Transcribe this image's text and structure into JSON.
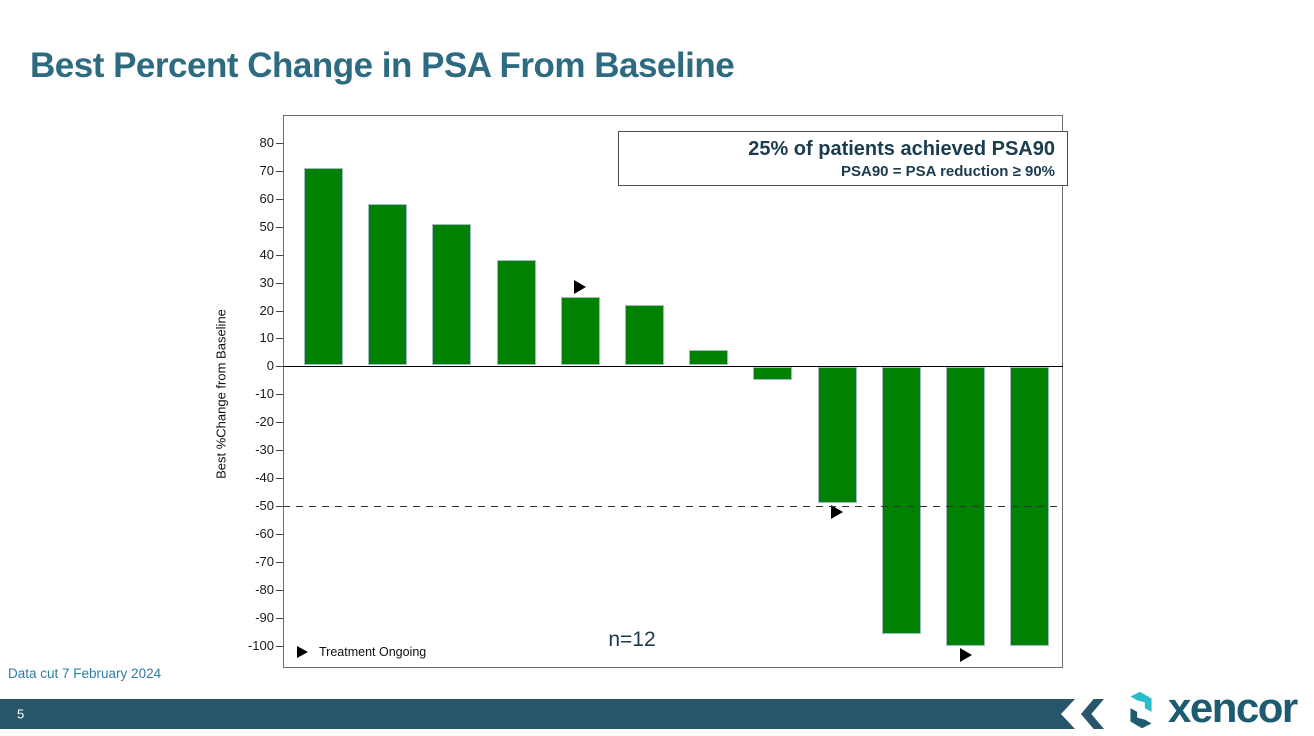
{
  "slide": {
    "title": "Best Percent Change in PSA From Baseline",
    "footnote": "Data cut 7 February 2024",
    "page_number": "5",
    "logo_text": "xencor"
  },
  "annotation": {
    "line1": "25% of patients achieved PSA90",
    "line2": "PSA90 = PSA reduction ≥ 90%"
  },
  "legend": {
    "marker": "right-triangle",
    "label": "Treatment Ongoing"
  },
  "n_label": "n=12",
  "colors": {
    "bar": "#018101",
    "bar_border": "#a3b8c9",
    "title": "#2d6b80",
    "annotation_text": "#1b3c4e",
    "footnote": "#2e7ca3",
    "footer_ribbon": "#27566a",
    "logo_teal": "#1d5c70",
    "logo_cyan": "#29bccb",
    "marker": "#000000"
  },
  "chart_data": {
    "type": "bar",
    "title": "",
    "xlabel": "",
    "ylabel": "Best %Change from Baseline",
    "x_tick_labels_visible": false,
    "ylim": [
      -108,
      90
    ],
    "yticks": [
      80,
      70,
      60,
      50,
      40,
      30,
      20,
      10,
      0,
      -10,
      -20,
      -30,
      -40,
      -50,
      -60,
      -70,
      -80,
      -90,
      -100
    ],
    "values": [
      71,
      58,
      51,
      38,
      25,
      22,
      6,
      -5,
      -49,
      -96,
      -100,
      -100
    ],
    "ongoing_marker_indices": [
      4,
      8,
      10
    ],
    "reference_line": -50,
    "grid": false,
    "legend_position": "bottom-left-inside",
    "bar_color": "#018101",
    "n": 12
  }
}
